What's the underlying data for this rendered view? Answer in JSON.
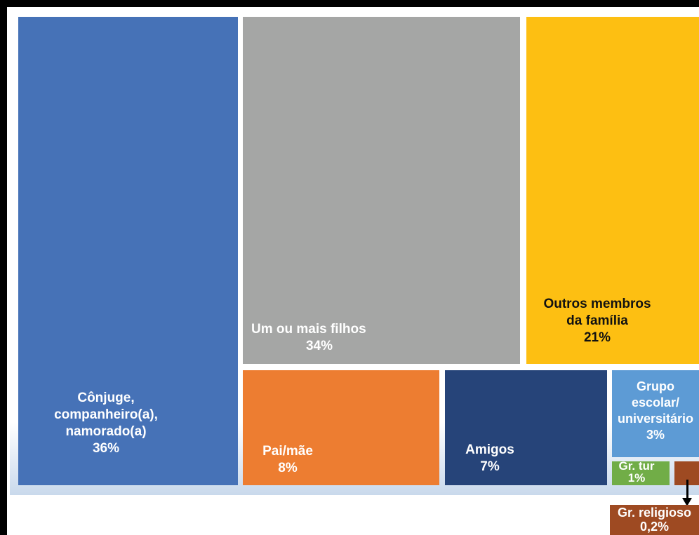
{
  "chart_data": {
    "type": "treemap",
    "items": [
      {
        "key": "conjuge",
        "label_lines": [
          "Cônjuge,",
          "companheiro(a),",
          "namorado(a)",
          "36%"
        ],
        "value": 36,
        "color": "#4672b7"
      },
      {
        "key": "filhos",
        "label_lines": [
          "Um ou mais filhos",
          "34%"
        ],
        "value": 34,
        "color": "#a5a6a5"
      },
      {
        "key": "outros",
        "label_lines": [
          "Outros membros",
          "da família",
          "21%"
        ],
        "value": 21,
        "color": "#fdbf12"
      },
      {
        "key": "pai",
        "label_lines": [
          "Pai/mãe",
          "8%"
        ],
        "value": 8,
        "color": "#ed7d31"
      },
      {
        "key": "amigos",
        "label_lines": [
          "Amigos",
          "7%"
        ],
        "value": 7,
        "color": "#264479"
      },
      {
        "key": "escolar",
        "label_lines": [
          "Grupo",
          "escolar/",
          "universitário",
          "3%"
        ],
        "value": 3,
        "color": "#5d9bd5"
      },
      {
        "key": "tur",
        "label_lines": [
          "Gr. tur",
          "1%"
        ],
        "value": 1,
        "color": "#71ad47"
      },
      {
        "key": "religioso",
        "label_lines": [
          "Gr. religioso",
          "0,2%"
        ],
        "value": 0.2,
        "color": "#9e4a22"
      }
    ]
  }
}
